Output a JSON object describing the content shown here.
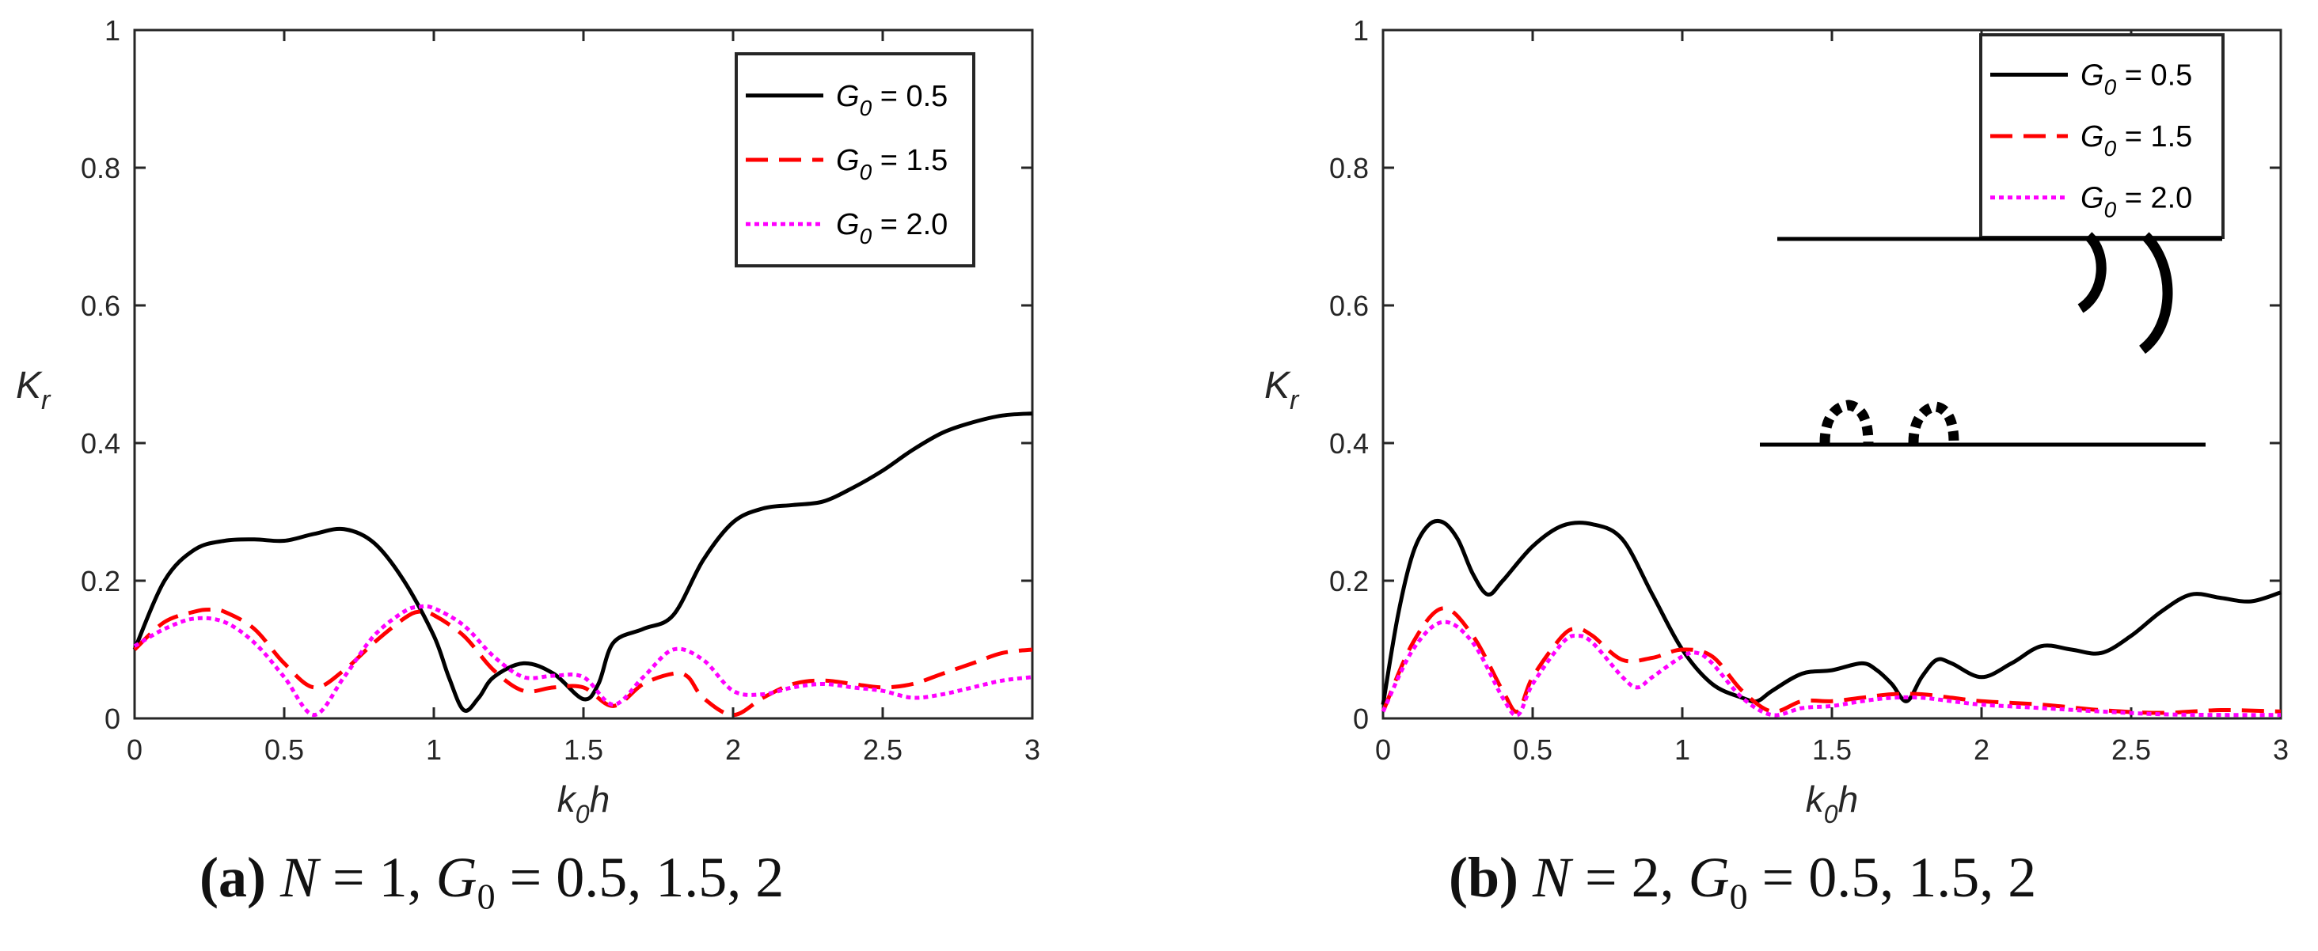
{
  "figure": {
    "captions": [
      {
        "label": "(a)",
        "text_parts": [
          "N",
          " = 1, ",
          "G",
          "0",
          " = 0.5, 1.5, 2"
        ]
      },
      {
        "label": "(b)",
        "text_parts": [
          "N",
          " = 2, ",
          "G",
          "0",
          " = 0.5, 1.5, 2"
        ]
      }
    ]
  },
  "chart_data": [
    {
      "type": "line",
      "title": "",
      "xlabel": "k0h",
      "ylabel": "Kr",
      "xlim": [
        0,
        3
      ],
      "ylim": [
        0,
        1
      ],
      "xticks": [
        0,
        0.5,
        1,
        1.5,
        2,
        2.5,
        3
      ],
      "xtick_labels": [
        "0",
        "0.5",
        "1",
        "1.5",
        "2",
        "2.5",
        "3"
      ],
      "yticks": [
        0,
        0.2,
        0.4,
        0.6,
        0.8,
        1
      ],
      "ytick_labels": [
        "0",
        "0.2",
        "0.4",
        "0.6",
        "0.8",
        "1"
      ],
      "legend_position": "top-right",
      "series": [
        {
          "name": "G0 = 0.5",
          "legend_text": [
            "G",
            "0",
            " = 0.5"
          ],
          "color": "#000000",
          "style": "solid",
          "points": [
            [
              0,
              0.1
            ],
            [
              0.1,
              0.2
            ],
            [
              0.2,
              0.245
            ],
            [
              0.3,
              0.258
            ],
            [
              0.4,
              0.26
            ],
            [
              0.5,
              0.258
            ],
            [
              0.6,
              0.268
            ],
            [
              0.7,
              0.275
            ],
            [
              0.8,
              0.255
            ],
            [
              0.9,
              0.2
            ],
            [
              1.0,
              0.12
            ],
            [
              1.05,
              0.06
            ],
            [
              1.1,
              0.012
            ],
            [
              1.15,
              0.03
            ],
            [
              1.2,
              0.06
            ],
            [
              1.3,
              0.08
            ],
            [
              1.4,
              0.065
            ],
            [
              1.5,
              0.028
            ],
            [
              1.55,
              0.05
            ],
            [
              1.6,
              0.11
            ],
            [
              1.7,
              0.13
            ],
            [
              1.8,
              0.15
            ],
            [
              1.9,
              0.23
            ],
            [
              2.0,
              0.285
            ],
            [
              2.1,
              0.305
            ],
            [
              2.2,
              0.31
            ],
            [
              2.3,
              0.315
            ],
            [
              2.4,
              0.335
            ],
            [
              2.5,
              0.36
            ],
            [
              2.6,
              0.39
            ],
            [
              2.7,
              0.415
            ],
            [
              2.8,
              0.43
            ],
            [
              2.9,
              0.44
            ],
            [
              3.0,
              0.443
            ]
          ]
        },
        {
          "name": "G0 = 1.5",
          "legend_text": [
            "G",
            "0",
            " = 1.5"
          ],
          "color": "#ff0000",
          "style": "dashed",
          "points": [
            [
              0,
              0.1
            ],
            [
              0.1,
              0.14
            ],
            [
              0.2,
              0.155
            ],
            [
              0.25,
              0.158
            ],
            [
              0.3,
              0.155
            ],
            [
              0.4,
              0.13
            ],
            [
              0.5,
              0.08
            ],
            [
              0.6,
              0.045
            ],
            [
              0.7,
              0.07
            ],
            [
              0.8,
              0.11
            ],
            [
              0.9,
              0.145
            ],
            [
              0.95,
              0.155
            ],
            [
              1.0,
              0.15
            ],
            [
              1.1,
              0.12
            ],
            [
              1.2,
              0.07
            ],
            [
              1.3,
              0.04
            ],
            [
              1.4,
              0.045
            ],
            [
              1.5,
              0.045
            ],
            [
              1.6,
              0.018
            ],
            [
              1.7,
              0.05
            ],
            [
              1.8,
              0.065
            ],
            [
              1.85,
              0.06
            ],
            [
              1.9,
              0.03
            ],
            [
              2.0,
              0.005
            ],
            [
              2.1,
              0.03
            ],
            [
              2.2,
              0.05
            ],
            [
              2.3,
              0.055
            ],
            [
              2.4,
              0.05
            ],
            [
              2.5,
              0.045
            ],
            [
              2.6,
              0.05
            ],
            [
              2.7,
              0.065
            ],
            [
              2.8,
              0.08
            ],
            [
              2.9,
              0.095
            ],
            [
              3.0,
              0.1
            ]
          ]
        },
        {
          "name": "G0 = 2.0",
          "legend_text": [
            "G",
            "0",
            " = 2.0"
          ],
          "color": "#ff00ff",
          "style": "dotted",
          "points": [
            [
              0,
              0.105
            ],
            [
              0.1,
              0.13
            ],
            [
              0.2,
              0.145
            ],
            [
              0.3,
              0.14
            ],
            [
              0.4,
              0.11
            ],
            [
              0.5,
              0.06
            ],
            [
              0.6,
              0.005
            ],
            [
              0.7,
              0.06
            ],
            [
              0.8,
              0.12
            ],
            [
              0.9,
              0.155
            ],
            [
              0.95,
              0.162
            ],
            [
              1.0,
              0.16
            ],
            [
              1.1,
              0.135
            ],
            [
              1.2,
              0.09
            ],
            [
              1.3,
              0.06
            ],
            [
              1.4,
              0.062
            ],
            [
              1.5,
              0.06
            ],
            [
              1.6,
              0.02
            ],
            [
              1.7,
              0.06
            ],
            [
              1.8,
              0.1
            ],
            [
              1.9,
              0.085
            ],
            [
              2.0,
              0.04
            ],
            [
              2.1,
              0.035
            ],
            [
              2.2,
              0.045
            ],
            [
              2.3,
              0.05
            ],
            [
              2.4,
              0.045
            ],
            [
              2.5,
              0.04
            ],
            [
              2.6,
              0.03
            ],
            [
              2.7,
              0.035
            ],
            [
              2.8,
              0.045
            ],
            [
              2.9,
              0.055
            ],
            [
              3.0,
              0.06
            ]
          ]
        }
      ]
    },
    {
      "type": "line",
      "title": "",
      "xlabel": "k0h",
      "ylabel": "Kr",
      "xlim": [
        0,
        3
      ],
      "ylim": [
        0,
        1
      ],
      "xticks": [
        0,
        0.5,
        1,
        1.5,
        2,
        2.5,
        3
      ],
      "xtick_labels": [
        "0",
        "0.5",
        "1",
        "1.5",
        "2",
        "2.5",
        "3"
      ],
      "yticks": [
        0,
        0.2,
        0.4,
        0.6,
        0.8,
        1
      ],
      "ytick_labels": [
        "0",
        "0.2",
        "0.4",
        "0.6",
        "0.8",
        "1"
      ],
      "legend_position": "top-right",
      "inset_sketch": "two horizontal plates with curved attachments",
      "series": [
        {
          "name": "G0 = 0.5",
          "legend_text": [
            "G",
            "0",
            " = 0.5"
          ],
          "color": "#000000",
          "style": "solid",
          "points": [
            [
              0,
              0.02
            ],
            [
              0.05,
              0.15
            ],
            [
              0.1,
              0.24
            ],
            [
              0.15,
              0.28
            ],
            [
              0.2,
              0.285
            ],
            [
              0.25,
              0.26
            ],
            [
              0.3,
              0.21
            ],
            [
              0.35,
              0.18
            ],
            [
              0.4,
              0.2
            ],
            [
              0.5,
              0.25
            ],
            [
              0.6,
              0.28
            ],
            [
              0.7,
              0.282
            ],
            [
              0.8,
              0.26
            ],
            [
              0.9,
              0.18
            ],
            [
              1.0,
              0.1
            ],
            [
              1.1,
              0.05
            ],
            [
              1.2,
              0.03
            ],
            [
              1.25,
              0.025
            ],
            [
              1.3,
              0.04
            ],
            [
              1.4,
              0.065
            ],
            [
              1.5,
              0.07
            ],
            [
              1.6,
              0.08
            ],
            [
              1.65,
              0.07
            ],
            [
              1.7,
              0.05
            ],
            [
              1.75,
              0.025
            ],
            [
              1.8,
              0.06
            ],
            [
              1.85,
              0.085
            ],
            [
              1.9,
              0.08
            ],
            [
              2.0,
              0.06
            ],
            [
              2.1,
              0.08
            ],
            [
              2.2,
              0.105
            ],
            [
              2.3,
              0.1
            ],
            [
              2.4,
              0.095
            ],
            [
              2.5,
              0.12
            ],
            [
              2.6,
              0.155
            ],
            [
              2.7,
              0.18
            ],
            [
              2.8,
              0.175
            ],
            [
              2.9,
              0.17
            ],
            [
              3.0,
              0.183
            ]
          ]
        },
        {
          "name": "G0 = 1.5",
          "legend_text": [
            "G",
            "0",
            " = 1.5"
          ],
          "color": "#ff0000",
          "style": "dashed",
          "points": [
            [
              0,
              0.01
            ],
            [
              0.1,
              0.11
            ],
            [
              0.2,
              0.16
            ],
            [
              0.3,
              0.12
            ],
            [
              0.4,
              0.04
            ],
            [
              0.45,
              0.01
            ],
            [
              0.5,
              0.06
            ],
            [
              0.6,
              0.12
            ],
            [
              0.65,
              0.13
            ],
            [
              0.7,
              0.12
            ],
            [
              0.8,
              0.085
            ],
            [
              0.9,
              0.088
            ],
            [
              1.0,
              0.1
            ],
            [
              1.1,
              0.09
            ],
            [
              1.2,
              0.04
            ],
            [
              1.3,
              0.01
            ],
            [
              1.4,
              0.025
            ],
            [
              1.5,
              0.025
            ],
            [
              1.6,
              0.03
            ],
            [
              1.7,
              0.035
            ],
            [
              1.8,
              0.035
            ],
            [
              1.9,
              0.03
            ],
            [
              2.0,
              0.025
            ],
            [
              2.2,
              0.02
            ],
            [
              2.4,
              0.012
            ],
            [
              2.6,
              0.008
            ],
            [
              2.8,
              0.012
            ],
            [
              3.0,
              0.01
            ]
          ]
        },
        {
          "name": "G0 = 2.0",
          "legend_text": [
            "G",
            "0",
            " = 2.0"
          ],
          "color": "#ff00ff",
          "style": "dotted",
          "points": [
            [
              0,
              0.01
            ],
            [
              0.1,
              0.1
            ],
            [
              0.2,
              0.14
            ],
            [
              0.3,
              0.11
            ],
            [
              0.4,
              0.03
            ],
            [
              0.45,
              0.005
            ],
            [
              0.5,
              0.05
            ],
            [
              0.6,
              0.11
            ],
            [
              0.65,
              0.12
            ],
            [
              0.7,
              0.11
            ],
            [
              0.8,
              0.06
            ],
            [
              0.85,
              0.045
            ],
            [
              0.9,
              0.06
            ],
            [
              1.0,
              0.09
            ],
            [
              1.05,
              0.095
            ],
            [
              1.1,
              0.08
            ],
            [
              1.2,
              0.03
            ],
            [
              1.3,
              0.005
            ],
            [
              1.4,
              0.015
            ],
            [
              1.5,
              0.018
            ],
            [
              1.6,
              0.025
            ],
            [
              1.7,
              0.03
            ],
            [
              1.8,
              0.03
            ],
            [
              1.9,
              0.025
            ],
            [
              2.0,
              0.02
            ],
            [
              2.2,
              0.015
            ],
            [
              2.4,
              0.01
            ],
            [
              2.6,
              0.006
            ],
            [
              2.8,
              0.005
            ],
            [
              3.0,
              0.005
            ]
          ]
        }
      ]
    }
  ]
}
